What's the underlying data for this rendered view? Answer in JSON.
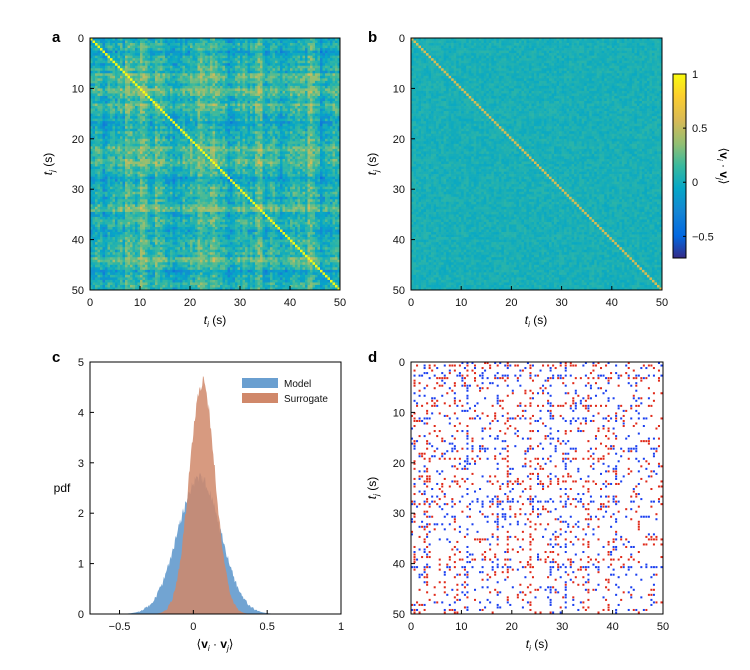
{
  "chart_data": [
    {
      "panel": "a",
      "type": "heatmap",
      "description_axes": true,
      "xlabel": "t_i (s)",
      "ylabel": "t_j (s)",
      "xlim": [
        0,
        50
      ],
      "ylim": [
        0,
        50
      ],
      "xticks": [
        0,
        10,
        20,
        30,
        40,
        50
      ],
      "yticks": [
        0,
        10,
        20,
        30,
        40,
        50
      ],
      "value_range": [
        -0.7,
        1
      ],
      "diagonal_value": 1,
      "bright_columns_s": [
        7.4,
        10.3,
        13.5,
        22.1,
        24.3,
        33.5,
        44.2
      ],
      "dark_columns_s": [
        2.5,
        16.8,
        27.8,
        38.5,
        46.5
      ]
    },
    {
      "panel": "b",
      "type": "heatmap",
      "xlabel": "t_i (s)",
      "ylabel": "t_j (s)",
      "xlim": [
        0,
        50
      ],
      "ylim": [
        0,
        50
      ],
      "xticks": [
        0,
        10,
        20,
        30,
        40,
        50
      ],
      "yticks": [
        0,
        10,
        20,
        30,
        40,
        50
      ],
      "value_range": [
        -0.7,
        1
      ],
      "colorbar": {
        "label": "⟨v_i · v_j⟩",
        "ticks": [
          1,
          0.5,
          0,
          -0.5
        ],
        "range": [
          -0.7,
          1
        ]
      }
    },
    {
      "panel": "c",
      "type": "area",
      "xlabel": "⟨v_i · v_j⟩",
      "ylabel": "pdf",
      "xlim": [
        -0.7,
        1
      ],
      "ylim": [
        0,
        5
      ],
      "xticks": [
        -0.5,
        0,
        0.5,
        1
      ],
      "yticks": [
        0,
        1,
        2,
        3,
        4,
        5
      ],
      "series": [
        {
          "name": "Model",
          "color": "#6a9fd0",
          "mean": 0.04,
          "sd": 0.145,
          "peak": 2.7
        },
        {
          "name": "Surrogate",
          "color": "#d0886a",
          "mean": 0.06,
          "sd": 0.087,
          "peak": 4.6
        }
      ],
      "legend": {
        "position": "top-right",
        "entries": [
          "Model",
          "Surrogate"
        ]
      }
    },
    {
      "panel": "d",
      "type": "heatmap",
      "xlabel": "t_i (s)",
      "ylabel": "t_j (s)",
      "xlim": [
        0,
        50
      ],
      "ylim": [
        0,
        50
      ],
      "xticks": [
        0,
        10,
        20,
        30,
        40,
        50
      ],
      "yticks": [
        0,
        10,
        20,
        30,
        40,
        50
      ],
      "colors": {
        "positive": "#e02a1a",
        "negative": "#1a3ff0",
        "background": "#ffffff"
      },
      "red_columns_s": [
        0.5,
        3.0,
        8.7,
        19.0,
        23.5,
        34.8,
        38.8
      ],
      "blue_columns_s": [
        2.5,
        11.0,
        16.8,
        27.6,
        30.6,
        40.5
      ]
    }
  ],
  "panel_labels": {
    "a": "a",
    "b": "b",
    "c": "c",
    "d": "d"
  },
  "labels": {
    "t_symbol": "t",
    "sub_i": "i",
    "sub_j": "j",
    "unit": " (s)",
    "pdf": "pdf",
    "v_open": "⟨",
    "v_bold": "v",
    "v_dot": " · ",
    "v_close": "⟩"
  },
  "legend": {
    "model": "Model",
    "surrogate": "Surrogate"
  },
  "colorbar_ticks": [
    "1",
    "0.5",
    "0",
    "−0.5"
  ],
  "colors": {
    "model": "#6a9fd0",
    "surrogate": "#d0886a",
    "positive": "#e02a1a",
    "negative": "#1a3ff0"
  }
}
